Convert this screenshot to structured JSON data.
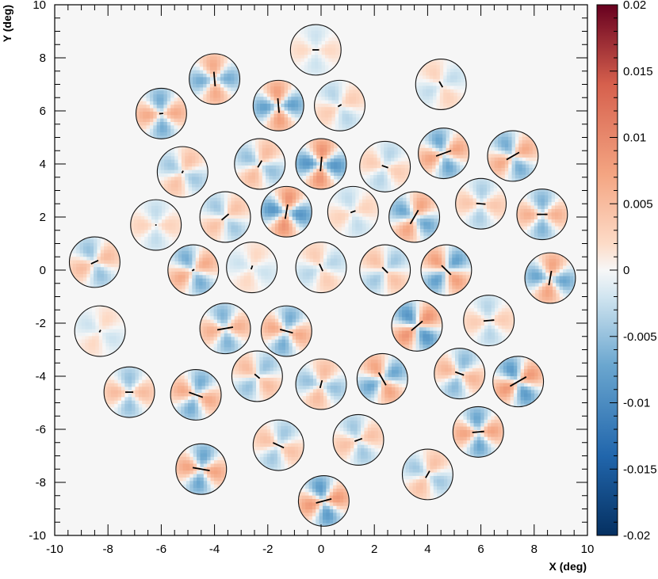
{
  "chart_data": {
    "type": "heatmap",
    "title": "",
    "xlabel": "X (deg)",
    "ylabel": "Y (deg)",
    "xlim": [
      -10,
      10
    ],
    "ylim": [
      -10,
      10
    ],
    "x_ticks": [
      -10,
      -8,
      -6,
      -4,
      -2,
      0,
      2,
      4,
      6,
      8,
      10
    ],
    "y_ticks": [
      -10,
      -8,
      -6,
      -4,
      -2,
      0,
      2,
      4,
      6,
      8,
      10
    ],
    "colorbar": {
      "range": [
        -0.02,
        0.02
      ],
      "ticks": [
        0.02,
        0.015,
        0.01,
        0.005,
        0,
        -0.005,
        -0.01,
        -0.015,
        -0.02
      ],
      "tick_labels": [
        "0.02",
        "0.015",
        "0.01",
        "0.005",
        "0",
        "-0.005",
        "-0.01",
        "-0.015",
        "-0.02"
      ],
      "low_color": "#053061",
      "mid_color": "#f7f7f7",
      "high_color": "#67001f"
    },
    "field_radius_deg": 0.95,
    "fields": [
      {
        "x": -0.2,
        "y": 8.3,
        "amp": 0.004,
        "angle": 0,
        "len": 0.25
      },
      {
        "x": -4.0,
        "y": 7.2,
        "amp": 0.012,
        "angle": 95,
        "len": 0.55
      },
      {
        "x": 4.5,
        "y": 7.0,
        "amp": 0.005,
        "angle": 120,
        "len": 0.25
      },
      {
        "x": -6.0,
        "y": 5.9,
        "amp": 0.012,
        "angle": 5,
        "len": 0.15
      },
      {
        "x": -1.6,
        "y": 6.2,
        "amp": 0.014,
        "angle": 95,
        "len": 0.55
      },
      {
        "x": 0.7,
        "y": 6.2,
        "amp": 0.006,
        "angle": 30,
        "len": 0.15
      },
      {
        "x": -5.2,
        "y": 3.7,
        "amp": 0.008,
        "angle": 60,
        "len": 0.1
      },
      {
        "x": -2.3,
        "y": 4.0,
        "amp": 0.009,
        "angle": 60,
        "len": 0.3
      },
      {
        "x": 0.0,
        "y": 4.0,
        "amp": 0.016,
        "angle": 85,
        "len": 0.55
      },
      {
        "x": 2.4,
        "y": 3.9,
        "amp": 0.006,
        "angle": -20,
        "len": 0.25
      },
      {
        "x": 4.6,
        "y": 4.4,
        "amp": 0.013,
        "angle": 20,
        "len": 0.6
      },
      {
        "x": 7.2,
        "y": 4.3,
        "amp": 0.012,
        "angle": 30,
        "len": 0.55
      },
      {
        "x": -6.2,
        "y": 1.7,
        "amp": 0.005,
        "angle": 0,
        "len": 0.05
      },
      {
        "x": -3.6,
        "y": 2.0,
        "amp": 0.008,
        "angle": 40,
        "len": 0.35
      },
      {
        "x": -1.3,
        "y": 2.2,
        "amp": 0.016,
        "angle": 80,
        "len": 0.55
      },
      {
        "x": 1.2,
        "y": 2.2,
        "amp": 0.005,
        "angle": 20,
        "len": 0.2
      },
      {
        "x": 3.5,
        "y": 2.0,
        "amp": 0.013,
        "angle": 60,
        "len": 0.6
      },
      {
        "x": 6.0,
        "y": 2.5,
        "amp": 0.007,
        "angle": -5,
        "len": 0.35
      },
      {
        "x": 8.3,
        "y": 2.1,
        "amp": 0.011,
        "angle": 0,
        "len": 0.4
      },
      {
        "x": -8.5,
        "y": 0.3,
        "amp": 0.009,
        "angle": 25,
        "len": 0.3
      },
      {
        "x": -4.8,
        "y": 0.0,
        "amp": 0.012,
        "angle": 30,
        "len": 0.1
      },
      {
        "x": -2.6,
        "y": 0.1,
        "amp": 0.004,
        "angle": 70,
        "len": 0.15
      },
      {
        "x": 0.0,
        "y": 0.1,
        "amp": 0.006,
        "angle": -65,
        "len": 0.3
      },
      {
        "x": 2.4,
        "y": 0.0,
        "amp": 0.008,
        "angle": -45,
        "len": 0.3
      },
      {
        "x": 4.7,
        "y": 0.0,
        "amp": 0.014,
        "angle": -45,
        "len": 0.5
      },
      {
        "x": 8.6,
        "y": -0.3,
        "amp": 0.013,
        "angle": 80,
        "len": 0.55
      },
      {
        "x": -8.3,
        "y": -2.3,
        "amp": 0.004,
        "angle": 60,
        "len": 0.1
      },
      {
        "x": -3.6,
        "y": -2.2,
        "amp": 0.011,
        "angle": 10,
        "len": 0.6
      },
      {
        "x": -1.3,
        "y": -2.3,
        "amp": 0.012,
        "angle": -15,
        "len": 0.5
      },
      {
        "x": 3.6,
        "y": -2.1,
        "amp": 0.016,
        "angle": 40,
        "len": 0.55
      },
      {
        "x": 6.3,
        "y": -1.9,
        "amp": 0.006,
        "angle": 5,
        "len": 0.4
      },
      {
        "x": -7.2,
        "y": -4.6,
        "amp": 0.009,
        "angle": 0,
        "len": 0.3
      },
      {
        "x": -4.7,
        "y": -4.7,
        "amp": 0.012,
        "angle": -20,
        "len": 0.55
      },
      {
        "x": -2.4,
        "y": -4.0,
        "amp": 0.009,
        "angle": -40,
        "len": 0.25
      },
      {
        "x": 0.0,
        "y": -4.3,
        "amp": 0.009,
        "angle": 75,
        "len": 0.3
      },
      {
        "x": 2.3,
        "y": -4.1,
        "amp": 0.013,
        "angle": -60,
        "len": 0.55
      },
      {
        "x": 5.2,
        "y": -3.9,
        "amp": 0.01,
        "angle": -20,
        "len": 0.35
      },
      {
        "x": 7.4,
        "y": -4.2,
        "amp": 0.015,
        "angle": 30,
        "len": 0.7
      },
      {
        "x": -1.6,
        "y": -6.6,
        "amp": 0.008,
        "angle": -25,
        "len": 0.45
      },
      {
        "x": 1.4,
        "y": -6.4,
        "amp": 0.008,
        "angle": 20,
        "len": 0.3
      },
      {
        "x": 5.9,
        "y": -6.1,
        "amp": 0.013,
        "angle": 5,
        "len": 0.45
      },
      {
        "x": -4.5,
        "y": -7.5,
        "amp": 0.013,
        "angle": -10,
        "len": 0.65
      },
      {
        "x": 4.0,
        "y": -7.7,
        "amp": 0.008,
        "angle": 60,
        "len": 0.3
      },
      {
        "x": 0.1,
        "y": -8.7,
        "amp": 0.015,
        "angle": 15,
        "len": 0.6
      }
    ]
  }
}
